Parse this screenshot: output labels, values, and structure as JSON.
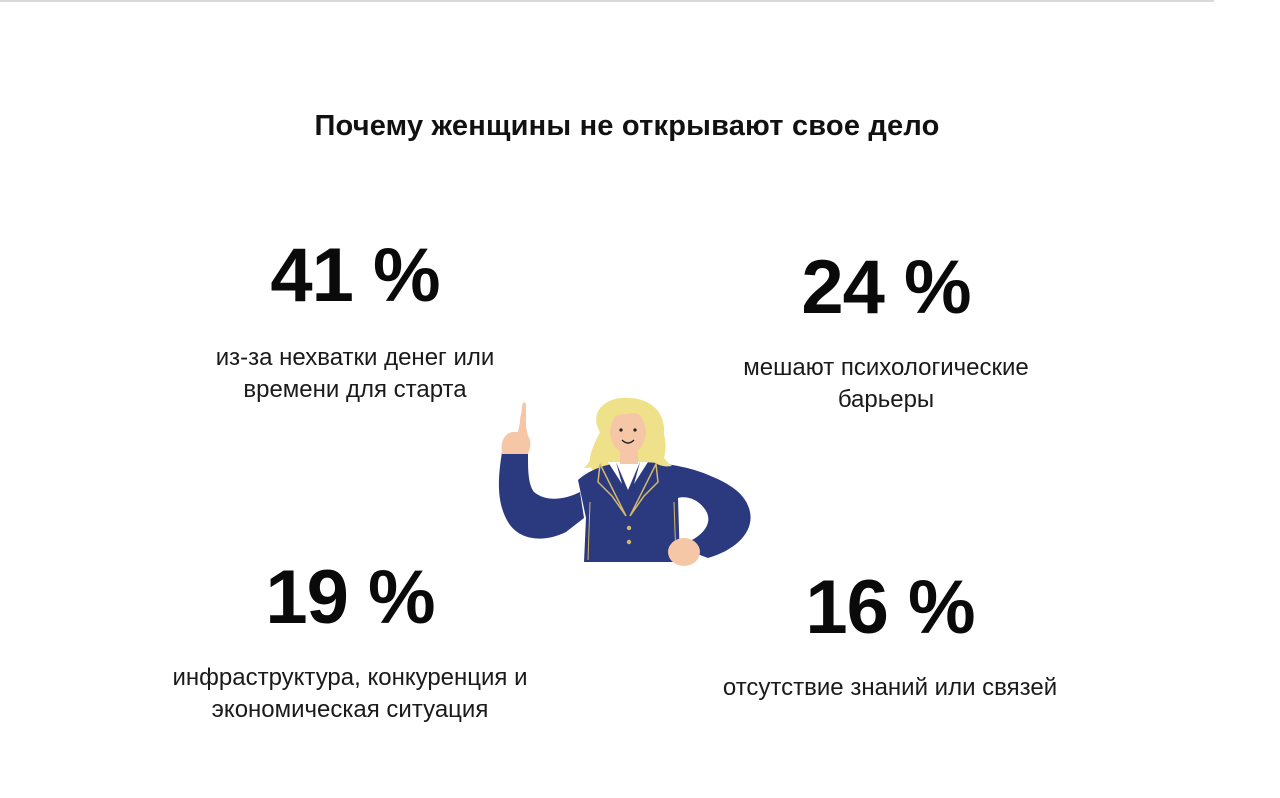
{
  "title": "Почему  женщины не открывают свое дело",
  "stats": [
    {
      "value": "41 %",
      "description": "из-за нехватки денег или времени для старта"
    },
    {
      "value": "24 %",
      "description": "мешают психологические барьеры"
    },
    {
      "value": "19 %",
      "description": "инфраструктура, конкуренция и экономическая ситуация"
    },
    {
      "value": "16 %",
      "description": "отсутствие знаний или связей"
    }
  ],
  "colors": {
    "text": "#111111",
    "jacket": "#2b3a7e",
    "hair": "#efe189",
    "skin": "#f6c7a6"
  },
  "illustration": {
    "icon": "woman-pointing-icon"
  }
}
